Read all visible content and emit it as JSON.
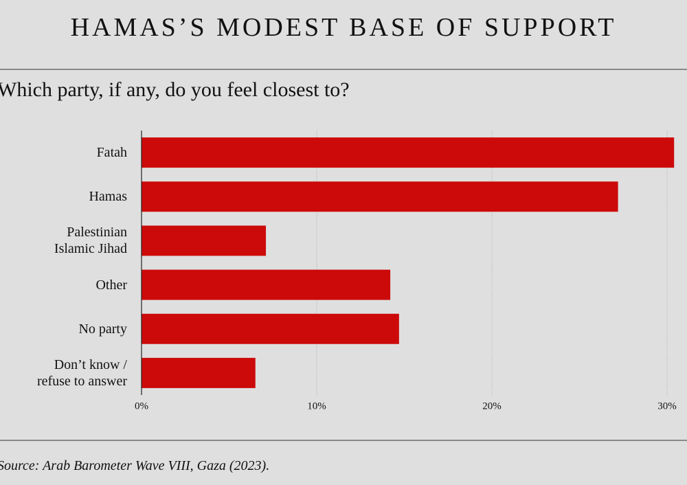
{
  "chart_data": {
    "type": "bar",
    "orientation": "horizontal",
    "title": "HAMAS’S MODEST BASE OF SUPPORT",
    "subtitle": "Which party, if any, do you feel closest to?",
    "source": "Source: Arab Barometer Wave VIII, Gaza (2023).",
    "categories": [
      "Fatah",
      "Hamas",
      "Palestinian\nIslamic Jihad",
      "Other",
      "No party",
      "Don’t know /\nrefuse to answer"
    ],
    "values": [
      30.4,
      27.2,
      7.1,
      14.2,
      14.7,
      6.5
    ],
    "color": "#cc0a0a",
    "xlim": [
      0,
      31
    ],
    "xticks": [
      {
        "value": 0,
        "label": "0%"
      },
      {
        "value": 10,
        "label": "10%"
      },
      {
        "value": 20,
        "label": "20%"
      },
      {
        "value": 30,
        "label": "30%"
      }
    ],
    "grid": true
  }
}
